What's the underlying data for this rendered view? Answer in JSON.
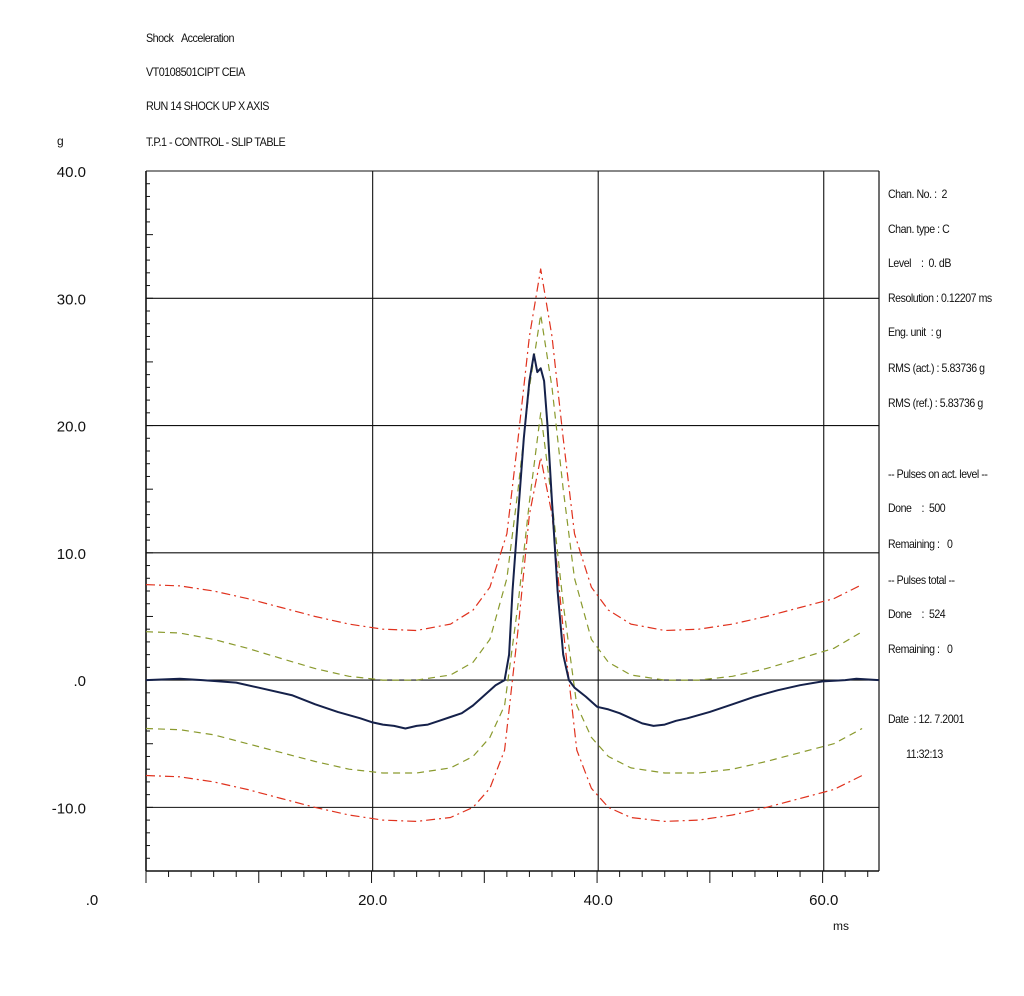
{
  "header": {
    "line1_a": "Shock",
    "line1_b": "Acceleration",
    "line2": "VT0108501CIPT CEIA",
    "line3": "RUN 14 SHOCK UP X AXIS",
    "line4": "T.P.1 - CONTROL - SLIP TABLE"
  },
  "info": {
    "chan_no": "Chan. No. :  2",
    "chan_type": "Chan. type : C",
    "level": "Level    :  0. dB",
    "resolution": "Resolution : 0.12207 ms",
    "eng_unit": "Eng. unit  : g",
    "rms_act": "RMS (act.) : 5.83736 g",
    "rms_ref": "RMS (ref.) : 5.83736 g",
    "pulses_act_header": "-- Pulses on act. level --",
    "done1": "Done    :  500",
    "remaining1": "Remaining :   0",
    "pulses_total_header": "-- Pulses total --",
    "done2": "Done    :  524",
    "remaining2": "Remaining :   0",
    "date": "Date  : 12. 7.2001",
    "time": "11:32:13"
  },
  "chart_data": {
    "type": "line",
    "ylabel": "g",
    "xlabel": "ms",
    "xlim": [
      0,
      65
    ],
    "ylim": [
      -15,
      40
    ],
    "yticks": [
      {
        "value": 40,
        "label": "40.0"
      },
      {
        "value": 30,
        "label": "30.0"
      },
      {
        "value": 20,
        "label": "20.0"
      },
      {
        "value": 10,
        "label": "10.0"
      },
      {
        "value": 0,
        "label": ".0"
      },
      {
        "value": -10,
        "label": "-10.0"
      }
    ],
    "xticks": [
      {
        "value": 0,
        "label": ".0"
      },
      {
        "value": 20,
        "label": "20.0"
      },
      {
        "value": 40,
        "label": "40.0"
      },
      {
        "value": 60,
        "label": "60.0"
      }
    ],
    "grid": true,
    "colors": {
      "measured": "#15214a",
      "abort": "#e0321e",
      "alarm": "#8a9a2e",
      "reference": "#2a6fb0"
    },
    "series": [
      {
        "key": "measured",
        "style": "solid",
        "x": [
          0,
          3,
          5,
          8,
          10,
          13,
          15,
          17,
          19,
          20,
          21,
          22,
          23,
          24,
          25,
          26,
          27,
          28,
          29,
          30,
          31,
          31.8,
          32.2,
          32.5,
          33,
          33.5,
          34,
          34.4,
          34.7,
          35.0,
          35.3,
          35.6,
          36.0,
          36.5,
          37.0,
          37.5,
          38,
          39,
          40,
          41,
          42,
          43,
          44,
          45,
          46,
          47,
          48,
          50,
          52,
          54,
          56,
          58,
          60,
          62,
          63,
          65
        ],
        "y": [
          0,
          0.1,
          0,
          -0.2,
          -0.6,
          -1.2,
          -1.9,
          -2.5,
          -3.0,
          -3.3,
          -3.5,
          -3.6,
          -3.8,
          -3.6,
          -3.5,
          -3.2,
          -2.9,
          -2.6,
          -2.0,
          -1.2,
          -0.4,
          0,
          2,
          7,
          13,
          19,
          23.5,
          25.6,
          24.2,
          24.5,
          23.5,
          20,
          14,
          7,
          2,
          0,
          -0.6,
          -1.3,
          -2.1,
          -2.3,
          -2.6,
          -3.0,
          -3.4,
          -3.6,
          -3.5,
          -3.2,
          -3.0,
          -2.5,
          -1.9,
          -1.3,
          -0.8,
          -0.4,
          -0.1,
          0,
          0.1,
          0
        ]
      },
      {
        "key": "abort",
        "style": "dashdot",
        "name": "upper abort",
        "x": [
          0,
          3,
          6,
          9,
          12,
          15,
          18,
          21,
          24,
          27,
          29,
          30.5,
          32,
          33,
          34,
          35,
          36,
          37,
          38,
          39.5,
          41,
          43,
          46,
          49,
          52,
          55,
          58,
          61,
          63.5
        ],
        "y": [
          7.5,
          7.4,
          7.0,
          6.4,
          5.7,
          5.0,
          4.4,
          4.0,
          3.9,
          4.4,
          5.5,
          7.3,
          11.5,
          19,
          27,
          32.3,
          27,
          19,
          11.5,
          7.3,
          5.5,
          4.4,
          3.9,
          4.0,
          4.4,
          5.0,
          5.7,
          6.4,
          7.5
        ]
      },
      {
        "key": "abort",
        "style": "dashdot",
        "name": "lower abort",
        "x": [
          0,
          3,
          6,
          9,
          12,
          15,
          18,
          21,
          24,
          27,
          29,
          30.5,
          31.8,
          33,
          34,
          35,
          36,
          37,
          38.2,
          39.5,
          41,
          43,
          46,
          49,
          52,
          55,
          58,
          61,
          63.5
        ],
        "y": [
          -7.5,
          -7.6,
          -8.0,
          -8.6,
          -9.3,
          -10.0,
          -10.6,
          -11.0,
          -11.1,
          -10.8,
          -10.0,
          -8.5,
          -5.5,
          4,
          13,
          17.5,
          13,
          4,
          -5.5,
          -8.5,
          -10.0,
          -10.8,
          -11.1,
          -11.0,
          -10.6,
          -10.0,
          -9.3,
          -8.6,
          -7.5
        ]
      },
      {
        "key": "alarm",
        "style": "dashed",
        "name": "upper alarm",
        "x": [
          0,
          3,
          6,
          9,
          12,
          15,
          18,
          21,
          24,
          27,
          29,
          30.5,
          32,
          33,
          34,
          35,
          36,
          37,
          38,
          39.5,
          41,
          43,
          46,
          49,
          52,
          55,
          58,
          61,
          63.5
        ],
        "y": [
          3.8,
          3.7,
          3.2,
          2.5,
          1.7,
          0.9,
          0.3,
          0,
          0,
          0.4,
          1.4,
          3.2,
          8,
          15,
          23,
          28.7,
          23,
          15,
          8,
          3.2,
          1.4,
          0.4,
          0,
          0,
          0.3,
          0.9,
          1.7,
          2.5,
          3.8
        ]
      },
      {
        "key": "alarm",
        "style": "dashed",
        "name": "lower alarm",
        "x": [
          0,
          3,
          6,
          9,
          12,
          15,
          18,
          21,
          24,
          27,
          29,
          30.5,
          31.8,
          33,
          34,
          35,
          36,
          37,
          38.2,
          39.5,
          41,
          43,
          46,
          49,
          52,
          55,
          58,
          61,
          63.5
        ],
        "y": [
          -3.8,
          -3.9,
          -4.3,
          -5.0,
          -5.7,
          -6.4,
          -7.0,
          -7.3,
          -7.3,
          -6.9,
          -6.0,
          -4.5,
          -2,
          6,
          14,
          21,
          14,
          6,
          -2,
          -4.5,
          -6.0,
          -6.9,
          -7.3,
          -7.3,
          -7.0,
          -6.4,
          -5.7,
          -5.0,
          -3.8
        ]
      }
    ]
  }
}
